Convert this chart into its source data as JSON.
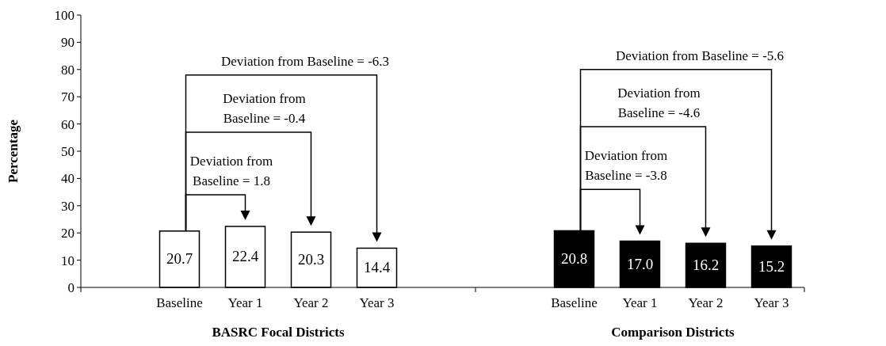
{
  "chart_data": {
    "type": "bar",
    "ylabel": "Percentage",
    "categories": [
      null,
      "Baseline",
      "Year 1",
      "Year 2",
      "Year 3",
      null,
      null,
      "Baseline",
      "Year 1",
      "Year 2",
      "Year 3"
    ],
    "series": [
      {
        "color": "#ffffff",
        "values": [
          null,
          20.7,
          22.4,
          20.3,
          14.4,
          null,
          null,
          null,
          null,
          null,
          null
        ],
        "value_labels": [
          null,
          "20.7",
          "22.4",
          "20.3",
          "14.4",
          null,
          null,
          null,
          null,
          null,
          null
        ]
      },
      {
        "color": "#000000",
        "values": [
          null,
          null,
          null,
          null,
          null,
          null,
          null,
          20.8,
          17.0,
          16.2,
          15.2
        ],
        "value_labels": [
          null,
          null,
          null,
          null,
          null,
          null,
          null,
          "20.8",
          "17.0",
          "16.2",
          "15.2"
        ]
      }
    ],
    "ylim": [
      0,
      100
    ],
    "yticks": [
      0,
      10,
      20,
      30,
      40,
      50,
      60,
      70,
      80,
      90,
      100
    ],
    "grid": false,
    "annotations": [
      "Deviation from Baseline = 1.8",
      "Deviation from Baseline = -0.4",
      "Deviation from Baseline = -6.3",
      "Deviation from Baseline = -3.8",
      "Deviation from Baseline = -4.6",
      "Deviation from Baseline = -5.6",
      "BASRC Focal Districts",
      "Comparison Districts"
    ]
  }
}
